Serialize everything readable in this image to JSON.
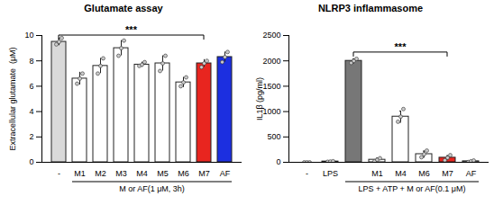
{
  "chart_data": [
    {
      "type": "bar",
      "title": "Glutamate assay",
      "y_label": "Extracellular glutamate  (μM)",
      "categories": [
        "-",
        "M1",
        "M2",
        "M3",
        "M4",
        "M5",
        "M6",
        "M7",
        "AF"
      ],
      "values": [
        9.5,
        6.6,
        7.6,
        9.0,
        7.7,
        7.8,
        6.3,
        7.8,
        8.3
      ],
      "errors": [
        0.3,
        0.5,
        0.6,
        0.6,
        0.2,
        0.6,
        0.4,
        0.3,
        0.4
      ],
      "points": [
        [
          9.3,
          9.5,
          9.8
        ],
        [
          6.2,
          6.6,
          7.0
        ],
        [
          7.0,
          7.6,
          8.2
        ],
        [
          8.4,
          9.0,
          9.6
        ],
        [
          7.6,
          7.7,
          7.9
        ],
        [
          7.2,
          7.8,
          8.4
        ],
        [
          6.0,
          6.3,
          6.7
        ],
        [
          7.5,
          7.8,
          8.0
        ],
        [
          7.9,
          8.3,
          8.7
        ]
      ],
      "colors": [
        "#d9d9d9",
        "#ffffff",
        "#ffffff",
        "#ffffff",
        "#ffffff",
        "#ffffff",
        "#ffffff",
        "#e8251f",
        "#1c2fe0"
      ],
      "ylim": [
        0,
        10
      ],
      "yticks": [
        0,
        2,
        4,
        6,
        8,
        10
      ],
      "annotations": [
        {
          "type": "bracket",
          "from": 0,
          "to": 7,
          "label": "***"
        },
        {
          "type": "group",
          "from": 1,
          "to": 8,
          "label": "M or AF(1 μM, 3h)"
        }
      ]
    },
    {
      "type": "bar",
      "title": "NLRP3 inflammasome",
      "y_label": "IL1β (pg/ml)",
      "categories": [
        "-",
        "LPS",
        null,
        "M1",
        "M4",
        "M6",
        "M7",
        "AF"
      ],
      "values": [
        0,
        15,
        2000,
        50,
        900,
        160,
        90,
        20
      ],
      "errors": [
        0,
        5,
        40,
        30,
        110,
        60,
        40,
        10
      ],
      "points": [
        [
          0,
          0,
          0
        ],
        [
          10,
          15,
          20
        ],
        [
          1960,
          2000,
          2040
        ],
        [
          20,
          50,
          80
        ],
        [
          800,
          900,
          1050
        ],
        [
          100,
          160,
          230
        ],
        [
          40,
          90,
          140
        ],
        [
          5,
          20,
          35
        ]
      ],
      "colors": [
        "#ffffff",
        "#ffffff",
        "#777777",
        "#ffffff",
        "#ffffff",
        "#ffffff",
        "#e8251f",
        "#ffffff"
      ],
      "ylim": [
        0,
        2500
      ],
      "yticks": [
        0,
        500,
        1000,
        1500,
        2000,
        2500
      ],
      "annotations": [
        {
          "type": "bracket",
          "from": 2,
          "to": 6,
          "label": "***"
        },
        {
          "type": "group",
          "from": 2,
          "to": 7,
          "label": "LPS + ATP + M or AF(0.1 μM)"
        }
      ]
    }
  ]
}
